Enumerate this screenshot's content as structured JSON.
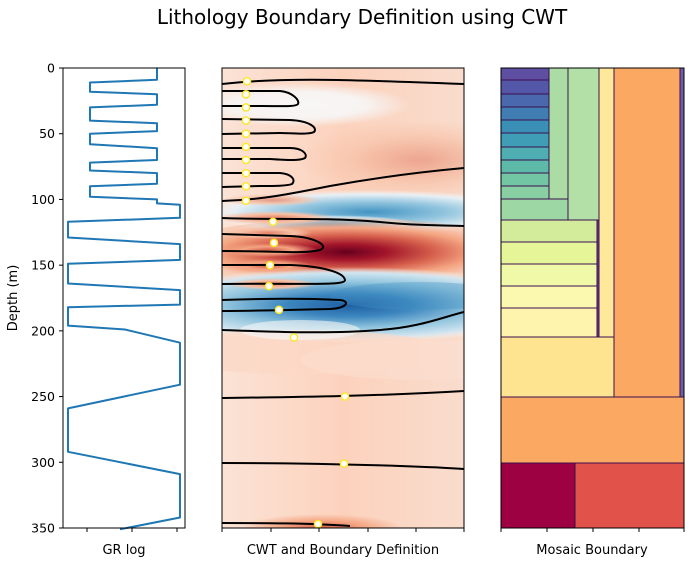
{
  "title": "Lithology Boundary Definition using CWT",
  "chart_data": [
    {
      "type": "line",
      "name": "gr-log",
      "xlabel": "GR log",
      "ylabel": "Depth (m)",
      "ylim": [
        350,
        0
      ],
      "yticks": [
        0,
        50,
        100,
        150,
        200,
        250,
        300,
        350
      ],
      "color": "#1f77b4",
      "points": [
        [
          157,
          0
        ],
        [
          157,
          9
        ],
        [
          90,
          11
        ],
        [
          90,
          18
        ],
        [
          157,
          20
        ],
        [
          157,
          28
        ],
        [
          90,
          30
        ],
        [
          90,
          40
        ],
        [
          157,
          42
        ],
        [
          157,
          48
        ],
        [
          90,
          50
        ],
        [
          90,
          58
        ],
        [
          157,
          61
        ],
        [
          157,
          70
        ],
        [
          90,
          72
        ],
        [
          90,
          78
        ],
        [
          157,
          80
        ],
        [
          157,
          88
        ],
        [
          90,
          90
        ],
        [
          90,
          98
        ],
        [
          157,
          100
        ],
        [
          157,
          103
        ],
        [
          180,
          104
        ],
        [
          180,
          114
        ],
        [
          68,
          117
        ],
        [
          68,
          129
        ],
        [
          180,
          134
        ],
        [
          180,
          146
        ],
        [
          68,
          149
        ],
        [
          68,
          164
        ],
        [
          180,
          169
        ],
        [
          180,
          180
        ],
        [
          68,
          182
        ],
        [
          68,
          196
        ],
        [
          125,
          199
        ],
        [
          180,
          209
        ],
        [
          180,
          241
        ],
        [
          68,
          259
        ],
        [
          68,
          292
        ],
        [
          180,
          309
        ],
        [
          180,
          342
        ],
        [
          120,
          351
        ]
      ]
    },
    {
      "type": "heatmap",
      "name": "cwt",
      "xlabel": "CWT and Boundary Definition",
      "ylim": [
        350,
        0
      ],
      "colormap": "RdBu_r",
      "boundary_markers_depth": [
        10,
        20,
        30,
        40,
        50,
        60,
        70,
        80,
        90,
        101,
        117,
        133,
        150,
        166,
        184,
        205,
        250,
        301,
        347
      ],
      "marker_color": "#fde725"
    },
    {
      "type": "mosaic",
      "name": "mosaic-boundary",
      "xlabel": "Mosaic Boundary",
      "ylim": [
        350,
        0
      ]
    }
  ]
}
